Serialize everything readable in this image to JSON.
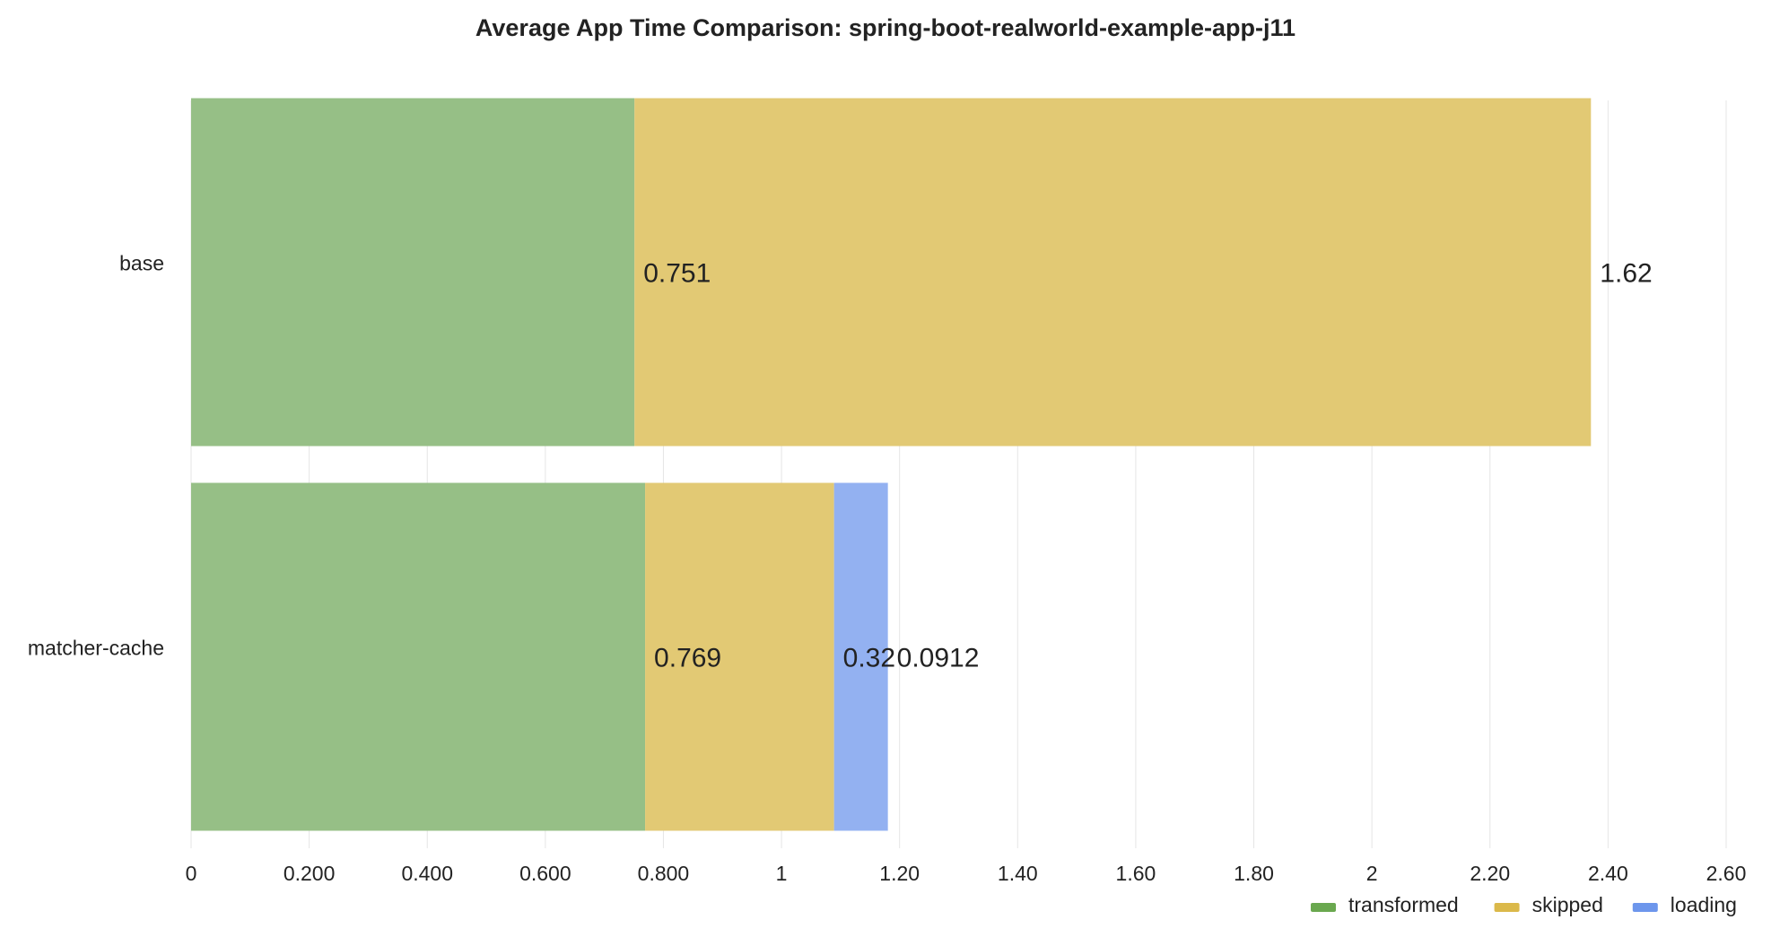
{
  "chart_data": {
    "type": "bar",
    "orientation": "horizontal",
    "stacked": true,
    "title": "Average App Time Comparison: spring-boot-realworld-example-app-j11",
    "categories": [
      "base",
      "matcher-cache"
    ],
    "series": [
      {
        "name": "transformed",
        "color": "#96bf86",
        "legend_color": "#6aa84f",
        "values": [
          0.751,
          0.769
        ],
        "labels": [
          "0.751",
          "0.769"
        ]
      },
      {
        "name": "skipped",
        "color": "#e2c974",
        "legend_color": "#dbb94a",
        "values": [
          1.62,
          0.32
        ],
        "labels": [
          "1.62",
          "0.32"
        ]
      },
      {
        "name": "loading",
        "color": "#93b1f1",
        "legend_color": "#6d96ec",
        "values": [
          0,
          0.0912
        ],
        "labels": [
          "",
          "0.0912"
        ]
      }
    ],
    "xlim": [
      0,
      2.6
    ],
    "xticks": [
      0,
      0.2,
      0.4,
      0.6,
      0.8,
      1,
      1.2,
      1.4,
      1.6,
      1.8,
      2,
      2.2,
      2.4,
      2.6
    ],
    "xtick_labels": [
      "0",
      "0.200",
      "0.400",
      "0.600",
      "0.800",
      "1",
      "1.20",
      "1.40",
      "1.60",
      "1.80",
      "2",
      "2.20",
      "2.40",
      "2.60"
    ],
    "xlabel": "",
    "ylabel": "",
    "grid": "vertical",
    "legend_position": "bottom-right"
  }
}
